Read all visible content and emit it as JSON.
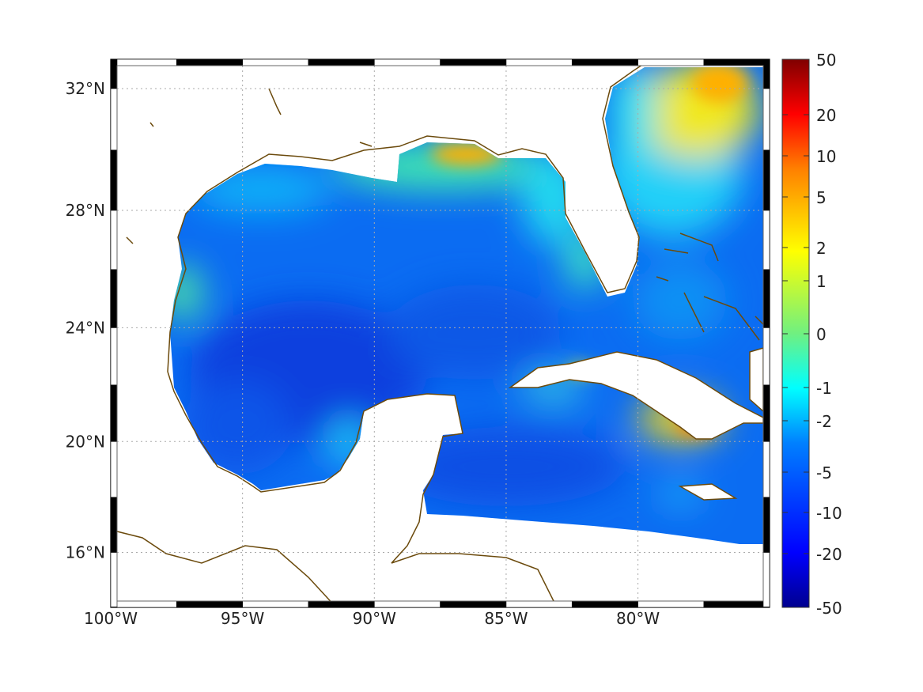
{
  "map": {
    "projection": "mercator",
    "lon_range": [
      -100,
      -75
    ],
    "lat_range": [
      14,
      33
    ],
    "lon_ticks": [
      {
        "value": -100,
        "label": "100°W"
      },
      {
        "value": -95,
        "label": "95°W"
      },
      {
        "value": -90,
        "label": "90°W"
      },
      {
        "value": -85,
        "label": "85°W"
      },
      {
        "value": -80,
        "label": "80°W"
      }
    ],
    "lat_ticks": [
      {
        "value": 32,
        "label": "32°N"
      },
      {
        "value": 28,
        "label": "28°N"
      },
      {
        "value": 24,
        "label": "24°N"
      },
      {
        "value": 20,
        "label": "20°N"
      },
      {
        "value": 16,
        "label": "16°N"
      }
    ],
    "coastline_color": "#6b4a0c",
    "grid": "dotted"
  },
  "colorbar": {
    "colormap": "jet",
    "labels": [
      "50",
      "20",
      "10",
      "5",
      "2",
      "1",
      "0",
      "-1",
      "-2",
      "-5",
      "-10",
      "-20",
      "-50"
    ]
  }
}
